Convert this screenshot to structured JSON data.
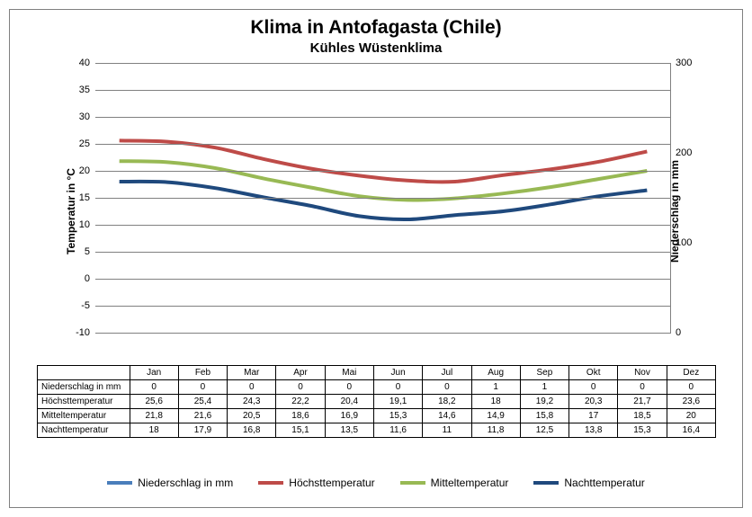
{
  "title": "Klima in Antofagasta (Chile)",
  "subtitle": "Kühles Wüstenklima",
  "y_left_label": "Temperatur in °C",
  "y_right_label": "Niederschlag in mm",
  "months": [
    "Jan",
    "Feb",
    "Mar",
    "Apr",
    "Mai",
    "Jun",
    "Jul",
    "Aug",
    "Sep",
    "Okt",
    "Nov",
    "Dez"
  ],
  "y_left": {
    "min": -10,
    "max": 40,
    "step": 5
  },
  "y_right": {
    "ticks": [
      0,
      100,
      200,
      300
    ]
  },
  "series": [
    {
      "key": "precip",
      "label": "Niederschlag in mm",
      "color": "#4a7ebb",
      "data": [
        0,
        0,
        0,
        0,
        0,
        0,
        0,
        1,
        1,
        0,
        0,
        0
      ],
      "display": [
        "0",
        "0",
        "0",
        "0",
        "0",
        "0",
        "0",
        "1",
        "1",
        "0",
        "0",
        "0"
      ]
    },
    {
      "key": "high",
      "label": "Höchsttemperatur",
      "color": "#be4b48",
      "data": [
        25.6,
        25.4,
        24.3,
        22.2,
        20.4,
        19.1,
        18.2,
        18,
        19.2,
        20.3,
        21.7,
        23.6
      ],
      "display": [
        "25,6",
        "25,4",
        "24,3",
        "22,2",
        "20,4",
        "19,1",
        "18,2",
        "18",
        "19,2",
        "20,3",
        "21,7",
        "23,6"
      ]
    },
    {
      "key": "mean",
      "label": "Mitteltemperatur",
      "color": "#98b954",
      "data": [
        21.8,
        21.6,
        20.5,
        18.6,
        16.9,
        15.3,
        14.6,
        14.9,
        15.8,
        17,
        18.5,
        20
      ],
      "display": [
        "21,8",
        "21,6",
        "20,5",
        "18,6",
        "16,9",
        "15,3",
        "14,6",
        "14,9",
        "15,8",
        "17",
        "18,5",
        "20"
      ]
    },
    {
      "key": "low",
      "label": "Nachttemperatur",
      "color": "#1f497d",
      "data": [
        18,
        17.9,
        16.8,
        15.1,
        13.5,
        11.6,
        11,
        11.8,
        12.5,
        13.8,
        15.3,
        16.4
      ],
      "display": [
        "18",
        "17,9",
        "16,8",
        "15,1",
        "13,5",
        "11,6",
        "11",
        "11,8",
        "12,5",
        "13,8",
        "15,3",
        "16,4"
      ]
    }
  ],
  "colors": {
    "background": "#ffffff",
    "grid": "#808080",
    "axis": "#000000",
    "text": "#000000"
  },
  "fontsize": {
    "title": 21,
    "subtitle": 15,
    "axis_label": 12,
    "tick": 11,
    "table": 10,
    "legend": 12
  }
}
